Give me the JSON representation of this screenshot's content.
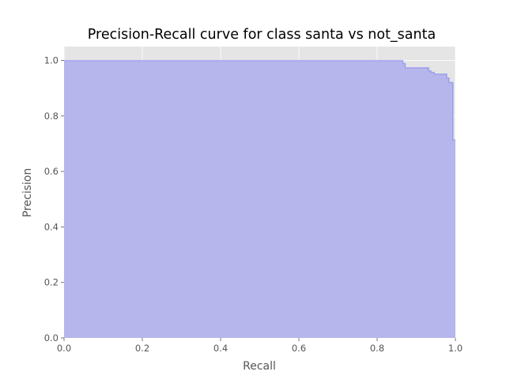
{
  "chart_data": {
    "type": "area",
    "title": "Precision-Recall curve for class santa vs not_santa",
    "xlabel": "Recall",
    "ylabel": "Precision",
    "xlim": [
      0.0,
      1.0
    ],
    "ylim": [
      0.0,
      1.05
    ],
    "xticks": [
      "0.0",
      "0.2",
      "0.4",
      "0.6",
      "0.8",
      "1.0"
    ],
    "yticks": [
      "0.0",
      "0.2",
      "0.4",
      "0.6",
      "0.8",
      "1.0"
    ],
    "grid": true,
    "step": "post",
    "series": [
      {
        "color": "#0000ff",
        "fill_color": "#b6b6ec",
        "x": [
          0.0,
          0.858,
          0.866,
          0.872,
          0.912,
          0.932,
          0.938,
          0.946,
          0.972,
          0.978,
          0.984,
          0.994,
          1.0
        ],
        "y": [
          1.0,
          1.0,
          0.989,
          0.974,
          0.974,
          0.963,
          0.957,
          0.951,
          0.951,
          0.937,
          0.921,
          0.714,
          0.714
        ]
      }
    ],
    "colors": {
      "plot_background": "#e5e5e5",
      "grid": "#ffffff",
      "axes_text": "#555555"
    }
  }
}
